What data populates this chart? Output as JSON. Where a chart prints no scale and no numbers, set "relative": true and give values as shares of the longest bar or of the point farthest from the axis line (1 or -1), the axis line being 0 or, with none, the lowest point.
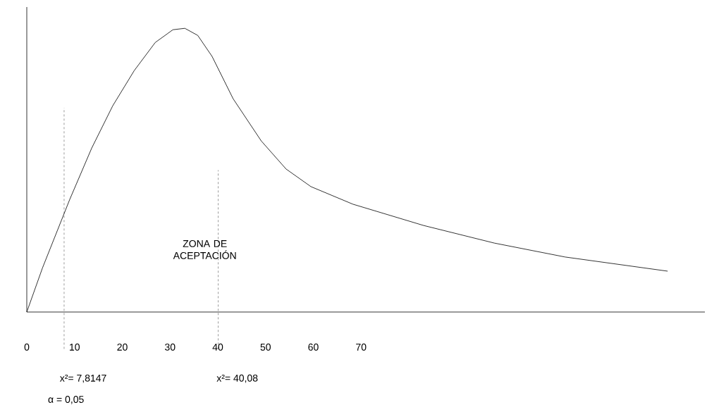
{
  "chart_data": {
    "type": "line",
    "relative": true,
    "x": [
      0,
      3.3,
      9.0,
      13.6,
      18.0,
      22.5,
      26.9,
      30.6,
      33.1,
      35.8,
      38.8,
      43.2,
      49.1,
      54.3,
      59.5,
      68.3,
      83.1,
      97.9,
      112.7,
      134.2
    ],
    "values": [
      0,
      0.156,
      0.397,
      0.578,
      0.727,
      0.851,
      0.95,
      0.995,
      1,
      0.975,
      0.901,
      0.752,
      0.603,
      0.504,
      0.442,
      0.38,
      0.305,
      0.243,
      0.194,
      0.144
    ],
    "color": "#000000",
    "marker": "none",
    "line_style": "solid",
    "xlim": [
      0,
      142
    ],
    "xticks": [
      0,
      10,
      20,
      30,
      40,
      50,
      60,
      70
    ],
    "ref_lines": [
      {
        "axis": "x",
        "value": 7.8147,
        "label": "x²= 7,8147",
        "line_style": "dashed"
      },
      {
        "axis": "x",
        "value": 40.08,
        "label": "x²= 40,08",
        "line_style": "dashed"
      }
    ],
    "annotations": [
      "ZONA DE ACEPTACIÓN",
      "α = 0,05"
    ]
  }
}
